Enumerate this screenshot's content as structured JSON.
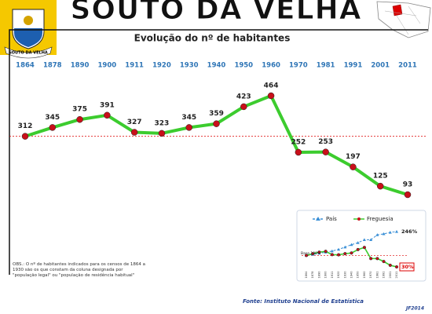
{
  "header": {
    "emblem_label": "SOUTO DA VELHA"
  },
  "chart_data": [
    {
      "type": "line",
      "title": "SOUTO DA VELHA",
      "subtitle": "Evolução do nº de habitantes",
      "categories": [
        "1864",
        "1878",
        "1890",
        "1900",
        "1911",
        "1920",
        "1930",
        "1940",
        "1950",
        "1960",
        "1970",
        "1981",
        "1991",
        "2001",
        "2011"
      ],
      "series": [
        {
          "name": "Freguesia",
          "color": "#3ccc2e",
          "marker_color": "#c8101a",
          "values": [
            312,
            345,
            375,
            391,
            327,
            323,
            345,
            359,
            423,
            464,
            252,
            253,
            197,
            125,
            93
          ]
        }
      ],
      "annotations": [
        "OBS.: O nº de habitantes indicados para os censos de 1864 a 1930 são os que constam da coluna designada por \"população legal\" ou \"população de residência habitual\"",
        "Fonte: Instituto Nacional de Estatística",
        "JF2014"
      ]
    },
    {
      "type": "line",
      "categories": [
        "1864",
        "1878",
        "1890",
        "1900",
        "1911",
        "1920",
        "1930",
        "1940",
        "1950",
        "1960",
        "1970",
        "1981",
        "1991",
        "2001",
        "2011"
      ],
      "series": [
        {
          "name": "País",
          "color": "#3a8fd6",
          "values": [
            100,
            106,
            113,
            120,
            127,
            137,
            151,
            166,
            178,
            196,
            196,
            226,
            232,
            241,
            246
          ],
          "value_labels": [
            null,
            null,
            null,
            null,
            null,
            null,
            null,
            null,
            null,
            null,
            null,
            null,
            null,
            null,
            "246%"
          ]
        },
        {
          "name": "Freguesia",
          "color": "#3ccc2e",
          "values": [
            100,
            111,
            120,
            125,
            105,
            104,
            111,
            115,
            136,
            149,
            81,
            81,
            63,
            40,
            30
          ],
          "value_labels": [
            null,
            null,
            null,
            null,
            null,
            null,
            null,
            null,
            null,
            null,
            null,
            null,
            null,
            null,
            "30%"
          ]
        }
      ],
      "annotations": [
        "Base 100%"
      ]
    }
  ]
}
